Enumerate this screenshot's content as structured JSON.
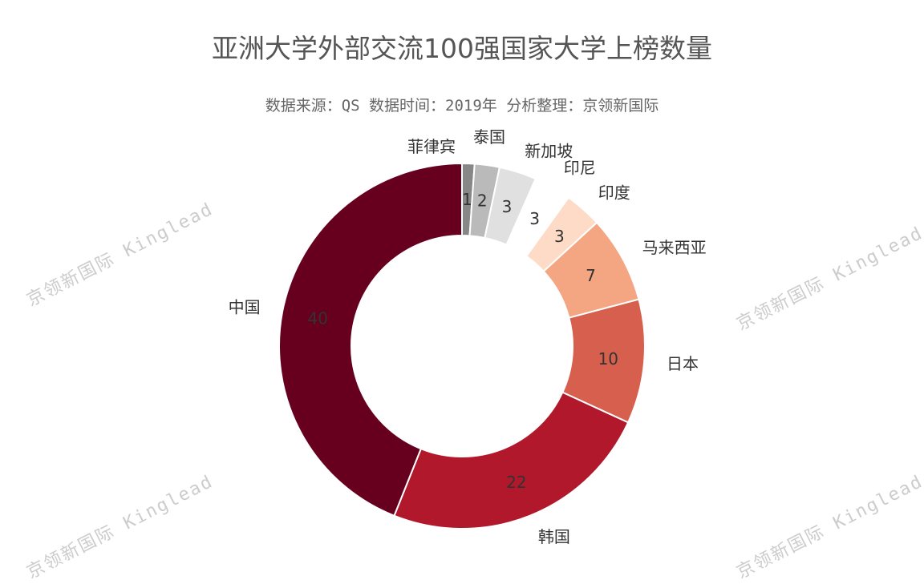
{
  "chart_data": {
    "type": "pie",
    "donut": true,
    "title": "亚洲大学外部交流100强国家大学上榜数量",
    "subtitle": "数据来源：QS 数据时间：2019年 分析整理：京领新国际",
    "categories": [
      "菲律宾",
      "泰国",
      "新加坡",
      "印尼",
      "印度",
      "马来西亚",
      "日本",
      "韩国",
      "中国"
    ],
    "values": [
      1,
      2,
      3,
      3,
      3,
      7,
      10,
      22,
      40
    ],
    "colors": [
      "#878787",
      "#bababa",
      "#e0e0e0",
      "#ffffff",
      "#fddbc7",
      "#f4a582",
      "#d6604d",
      "#b2182b",
      "#67001f"
    ],
    "legend": "none"
  },
  "watermark": "京领新国际 Kinglead"
}
